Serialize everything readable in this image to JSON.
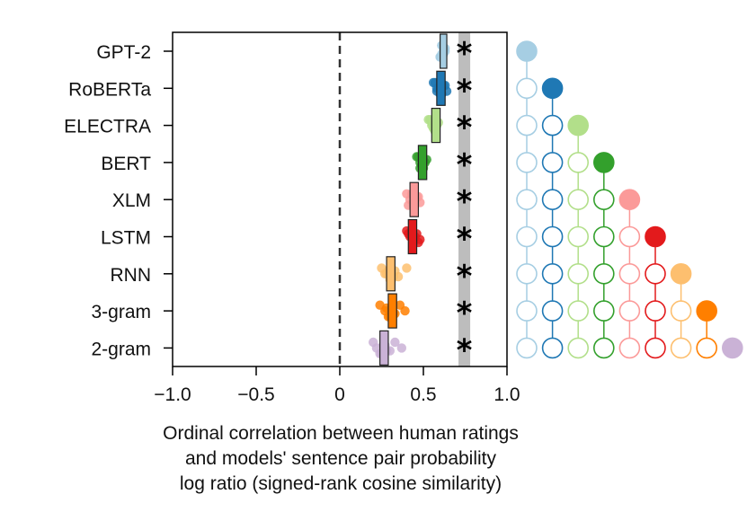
{
  "chart_data": {
    "type": "scatter",
    "xlim": [
      -1.0,
      1.0
    ],
    "xticks": [
      -1.0,
      -0.5,
      0,
      0.5,
      1.0
    ],
    "xtick_labels": [
      "−1.0",
      "−0.5",
      "0",
      "0.5",
      "1.0"
    ],
    "xlabel_lines": [
      "Ordinal correlation between human ratings",
      "and models' sentence pair probability",
      "log ratio (signed-rank cosine similarity)"
    ],
    "reference_line": 0,
    "noise_ceiling": [
      0.71,
      0.78
    ],
    "significance_marker": "*",
    "models": [
      {
        "name": "GPT-2",
        "color": "#a6cee3",
        "box": [
          0.6,
          0.64
        ],
        "points": [
          0.61,
          0.62,
          0.6,
          0.63,
          0.62,
          0.61,
          0.63,
          0.6,
          0.62,
          0.61
        ]
      },
      {
        "name": "RoBERTa",
        "color": "#1f78b4",
        "box": [
          0.58,
          0.63
        ],
        "points": [
          0.56,
          0.58,
          0.6,
          0.62,
          0.64,
          0.57,
          0.59,
          0.61,
          0.63,
          0.58
        ]
      },
      {
        "name": "ELECTRA",
        "color": "#b2df8a",
        "box": [
          0.55,
          0.6
        ],
        "points": [
          0.53,
          0.55,
          0.57,
          0.59,
          0.56,
          0.54,
          0.58,
          0.57,
          0.55,
          0.56
        ]
      },
      {
        "name": "BERT",
        "color": "#33a02c",
        "box": [
          0.47,
          0.52
        ],
        "points": [
          0.46,
          0.48,
          0.5,
          0.52,
          0.49,
          0.47,
          0.51,
          0.48,
          0.5,
          0.49
        ]
      },
      {
        "name": "XLM",
        "color": "#fb9a99",
        "box": [
          0.42,
          0.47
        ],
        "points": [
          0.4,
          0.42,
          0.44,
          0.46,
          0.48,
          0.43,
          0.45,
          0.41,
          0.47,
          0.44
        ]
      },
      {
        "name": "LSTM",
        "color": "#e31a1c",
        "box": [
          0.41,
          0.46
        ],
        "points": [
          0.4,
          0.42,
          0.44,
          0.46,
          0.48,
          0.43,
          0.45,
          0.47,
          0.41,
          0.44
        ]
      },
      {
        "name": "RNN",
        "color": "#fdbf6f",
        "box": [
          0.28,
          0.33
        ],
        "points": [
          0.25,
          0.28,
          0.3,
          0.33,
          0.35,
          0.4,
          0.27,
          0.31,
          0.29,
          0.32
        ]
      },
      {
        "name": "3-gram",
        "color": "#ff7f00",
        "box": [
          0.29,
          0.34
        ],
        "points": [
          0.24,
          0.27,
          0.29,
          0.31,
          0.33,
          0.36,
          0.39,
          0.3,
          0.28,
          0.32
        ]
      },
      {
        "name": "2-gram",
        "color": "#cab2d6",
        "box": [
          0.24,
          0.29
        ],
        "points": [
          0.2,
          0.22,
          0.25,
          0.27,
          0.3,
          0.33,
          0.37,
          0.24,
          0.26,
          0.28
        ]
      }
    ]
  }
}
